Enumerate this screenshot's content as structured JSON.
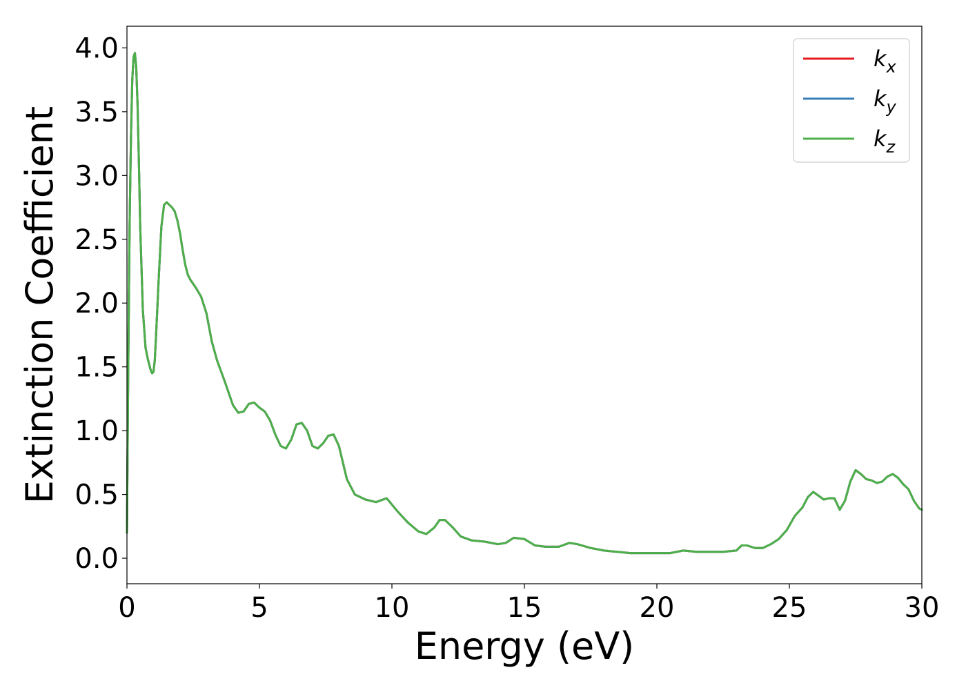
{
  "chart_data": {
    "type": "line",
    "title": "",
    "xlabel": "Energy (eV)",
    "ylabel": "Extinction Coefficient",
    "xlim": [
      0,
      30
    ],
    "ylim": [
      -0.2,
      4.17
    ],
    "xticks": [
      "0",
      "5",
      "10",
      "15",
      "20",
      "25",
      "30"
    ],
    "yticks": [
      "0.0",
      "0.5",
      "1.0",
      "1.5",
      "2.0",
      "2.5",
      "3.0",
      "3.5",
      "4.0"
    ],
    "grid": false,
    "legend_position": "top-right",
    "series": [
      {
        "name": "k",
        "subscript": "x",
        "color": "#e41a1c"
      },
      {
        "name": "k",
        "subscript": "y",
        "color": "#377eb8"
      },
      {
        "name": "k",
        "subscript": "z",
        "color": "#4daf4a"
      }
    ],
    "x": [
      0,
      0.05,
      0.1,
      0.15,
      0.2,
      0.25,
      0.3,
      0.35,
      0.4,
      0.45,
      0.5,
      0.6,
      0.7,
      0.8,
      0.9,
      0.95,
      1.0,
      1.05,
      1.1,
      1.2,
      1.3,
      1.4,
      1.5,
      1.6,
      1.7,
      1.8,
      1.9,
      2.0,
      2.1,
      2.2,
      2.3,
      2.4,
      2.5,
      2.6,
      2.8,
      3.0,
      3.2,
      3.4,
      3.7,
      4.0,
      4.2,
      4.4,
      4.6,
      4.8,
      5.0,
      5.2,
      5.4,
      5.6,
      5.8,
      6.0,
      6.2,
      6.4,
      6.6,
      6.8,
      7.0,
      7.2,
      7.4,
      7.6,
      7.8,
      8.0,
      8.3,
      8.6,
      9.0,
      9.4,
      9.8,
      10.2,
      10.6,
      11.0,
      11.3,
      11.6,
      11.8,
      12.0,
      12.3,
      12.6,
      13.0,
      13.5,
      14.0,
      14.3,
      14.6,
      15.0,
      15.4,
      15.8,
      16.3,
      16.7,
      17.0,
      17.5,
      18.0,
      18.5,
      19.0,
      19.5,
      20.0,
      20.5,
      21.0,
      21.5,
      22.0,
      22.5,
      23.0,
      23.2,
      23.4,
      23.7,
      24.0,
      24.3,
      24.6,
      24.9,
      25.2,
      25.5,
      25.7,
      25.9,
      26.1,
      26.3,
      26.5,
      26.7,
      26.9,
      27.1,
      27.3,
      27.5,
      27.7,
      27.9,
      28.1,
      28.3,
      28.5,
      28.7,
      28.9,
      29.1,
      29.3,
      29.5,
      29.7,
      29.9,
      30.0
    ],
    "y": [
      0.2,
      1.5,
      2.6,
      3.3,
      3.75,
      3.93,
      3.96,
      3.85,
      3.55,
      3.1,
      2.6,
      1.95,
      1.65,
      1.55,
      1.47,
      1.45,
      1.46,
      1.55,
      1.75,
      2.2,
      2.6,
      2.77,
      2.79,
      2.77,
      2.75,
      2.72,
      2.65,
      2.55,
      2.42,
      2.3,
      2.22,
      2.18,
      2.15,
      2.12,
      2.05,
      1.92,
      1.7,
      1.55,
      1.38,
      1.2,
      1.14,
      1.15,
      1.21,
      1.22,
      1.18,
      1.15,
      1.08,
      0.97,
      0.88,
      0.86,
      0.93,
      1.05,
      1.06,
      1.0,
      0.88,
      0.86,
      0.9,
      0.96,
      0.97,
      0.88,
      0.62,
      0.5,
      0.46,
      0.44,
      0.47,
      0.37,
      0.28,
      0.21,
      0.19,
      0.24,
      0.3,
      0.3,
      0.24,
      0.17,
      0.14,
      0.13,
      0.11,
      0.12,
      0.16,
      0.15,
      0.1,
      0.09,
      0.09,
      0.12,
      0.11,
      0.08,
      0.06,
      0.05,
      0.04,
      0.04,
      0.04,
      0.04,
      0.06,
      0.05,
      0.05,
      0.05,
      0.06,
      0.1,
      0.1,
      0.08,
      0.08,
      0.11,
      0.15,
      0.22,
      0.33,
      0.4,
      0.48,
      0.52,
      0.49,
      0.46,
      0.47,
      0.47,
      0.38,
      0.45,
      0.6,
      0.69,
      0.66,
      0.62,
      0.61,
      0.59,
      0.6,
      0.64,
      0.66,
      0.63,
      0.58,
      0.54,
      0.45,
      0.39,
      0.38
    ]
  }
}
